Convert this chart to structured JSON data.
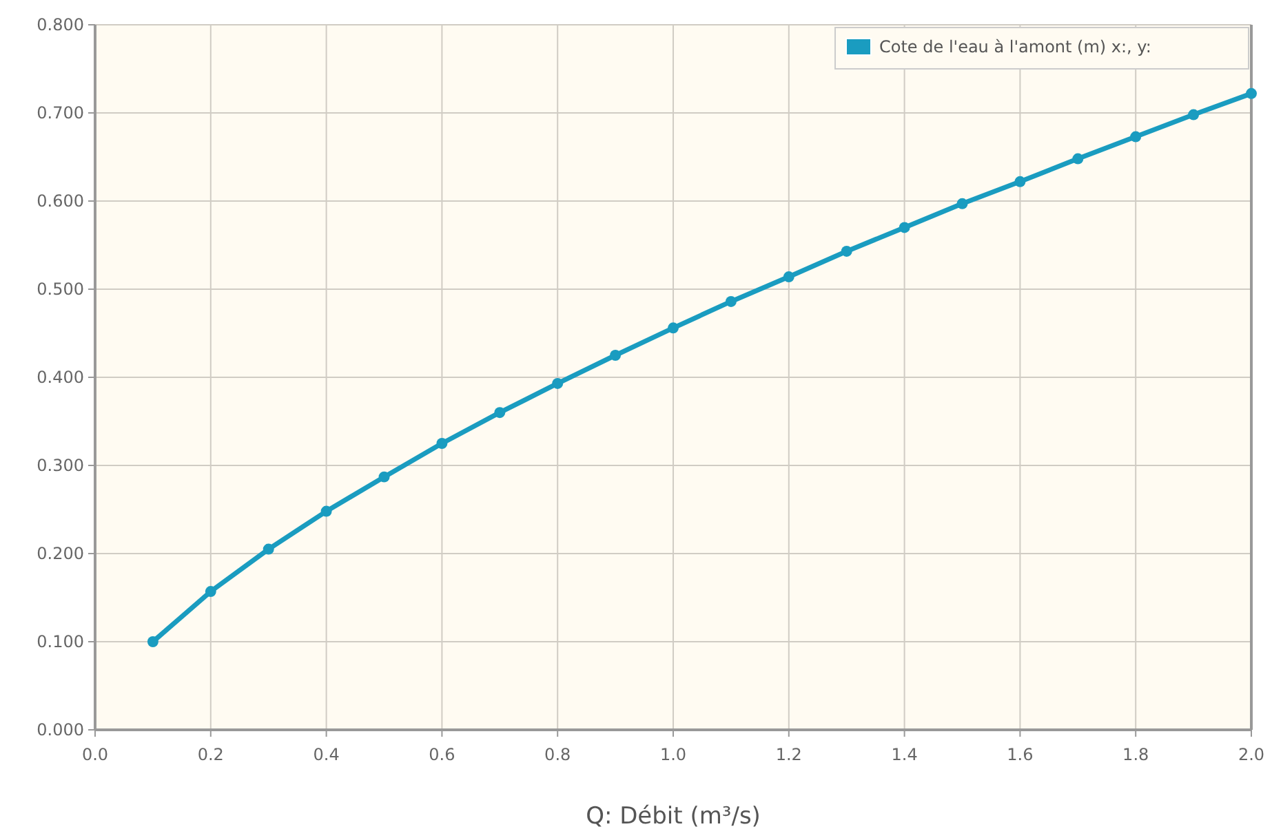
{
  "chart_data": {
    "type": "line",
    "xlabel": "Q: Débit (m³/s)",
    "x": [
      0.1,
      0.2,
      0.3,
      0.4,
      0.5,
      0.6,
      0.7,
      0.8,
      0.9,
      1.0,
      1.1,
      1.2,
      1.3,
      1.4,
      1.5,
      1.6,
      1.7,
      1.8,
      1.9,
      2.0
    ],
    "series": [
      {
        "name": "Cote de l'eau à l'amont (m) x:, y:",
        "color": "#1a9cc0",
        "values": [
          0.1,
          0.157,
          0.205,
          0.248,
          0.287,
          0.325,
          0.36,
          0.393,
          0.425,
          0.456,
          0.486,
          0.514,
          0.543,
          0.57,
          0.597,
          0.622,
          0.648,
          0.673,
          0.698,
          0.722
        ]
      }
    ],
    "xlim": [
      0,
      2
    ],
    "ylim": [
      0,
      0.8
    ],
    "xticks": [
      {
        "value": 0,
        "label": "0.0"
      },
      {
        "value": 0.2,
        "label": "0.2"
      },
      {
        "value": 0.4,
        "label": "0.4"
      },
      {
        "value": 0.6,
        "label": "0.6"
      },
      {
        "value": 0.8,
        "label": "0.8"
      },
      {
        "value": 1,
        "label": "1.0"
      },
      {
        "value": 1.2,
        "label": "1.2"
      },
      {
        "value": 1.4,
        "label": "1.4"
      },
      {
        "value": 1.6,
        "label": "1.6"
      },
      {
        "value": 1.8,
        "label": "1.8"
      },
      {
        "value": 2,
        "label": "2.0"
      }
    ],
    "yticks": [
      {
        "value": 0,
        "label": "0.000"
      },
      {
        "value": 0.1,
        "label": "0.100"
      },
      {
        "value": 0.2,
        "label": "0.200"
      },
      {
        "value": 0.3,
        "label": "0.300"
      },
      {
        "value": 0.4,
        "label": "0.400"
      },
      {
        "value": 0.5,
        "label": "0.500"
      },
      {
        "value": 0.6,
        "label": "0.600"
      },
      {
        "value": 0.7,
        "label": "0.700"
      },
      {
        "value": 0.8,
        "label": "0.800"
      }
    ],
    "grid": true,
    "legend": "top right",
    "marker": "circle",
    "line_style": "solid"
  }
}
